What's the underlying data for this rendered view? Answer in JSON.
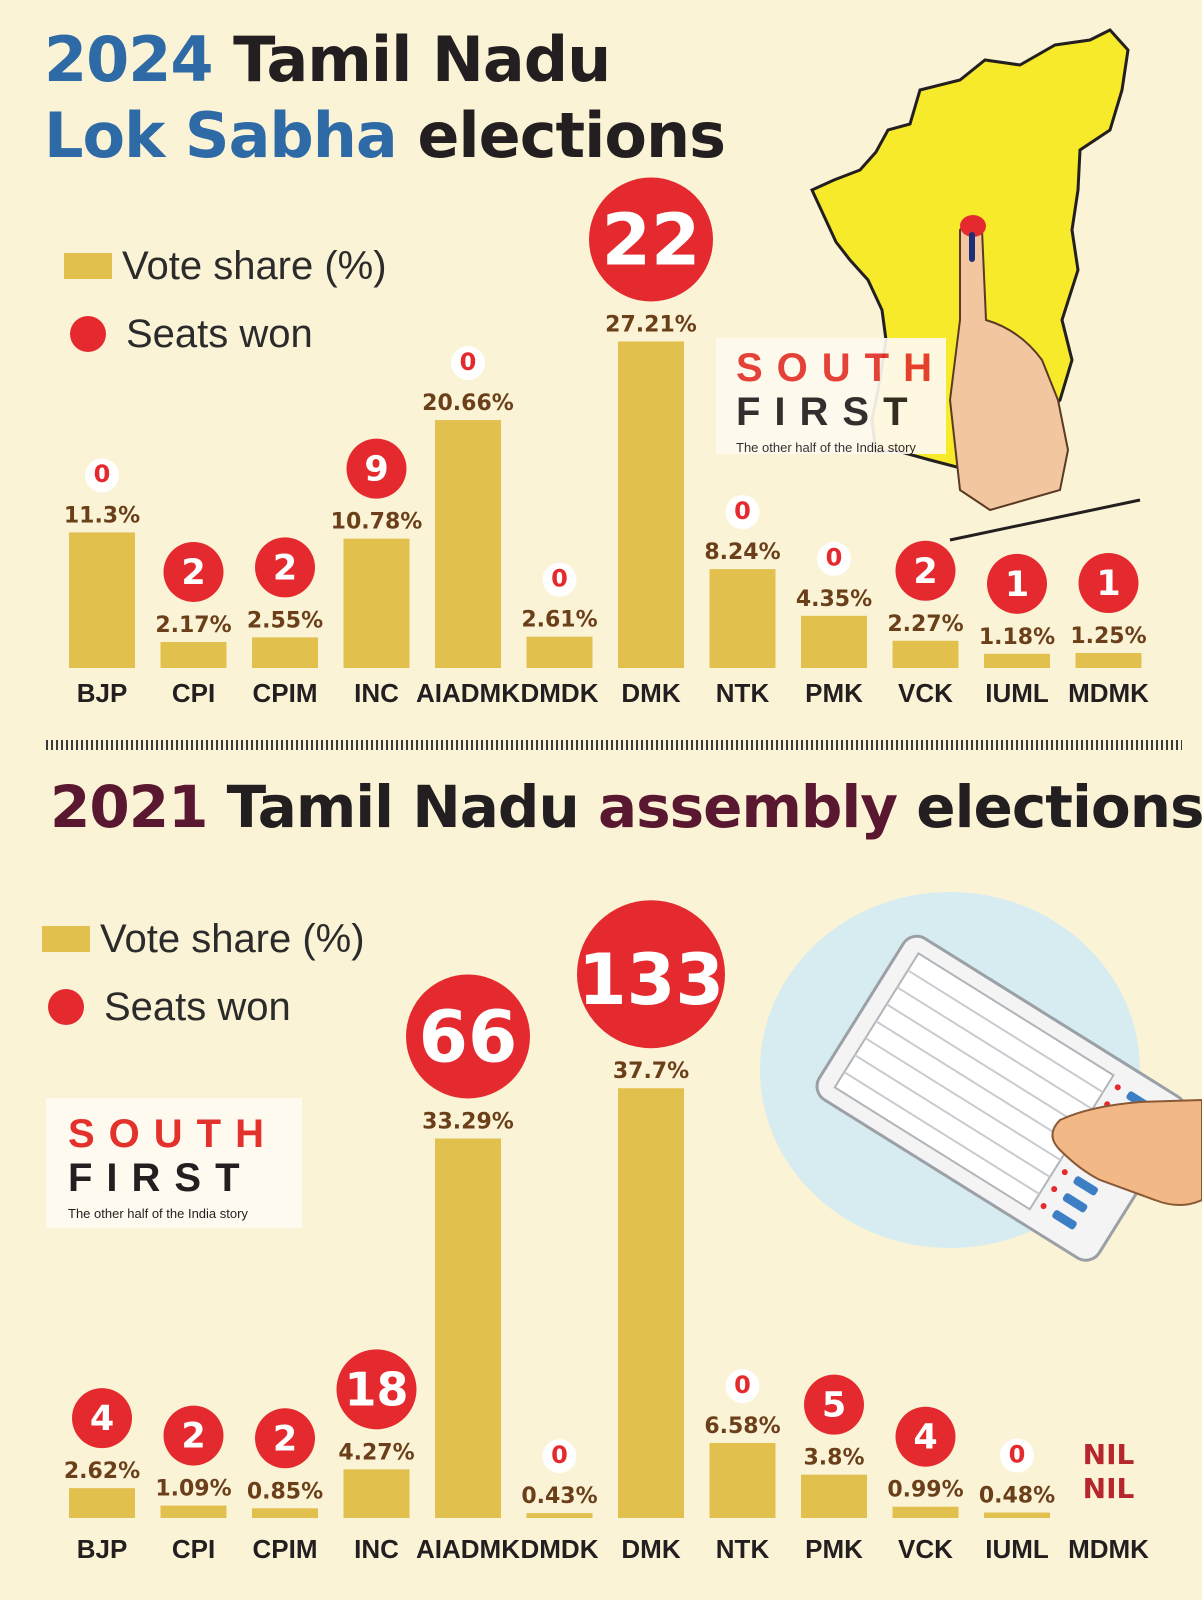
{
  "titles": {
    "lok_year": "2024",
    "lok_rest_line1": " Tamil Nadu",
    "lok_highlight": "Lok Sabha",
    "lok_rest_line2": " elections",
    "asm_year": "2021",
    "asm_mid": " Tamil Nadu ",
    "asm_highlight": "assembly",
    "asm_end": " elections"
  },
  "legend": {
    "vote_share": "Vote share (%)",
    "seats_won": "Seats won"
  },
  "logo": {
    "line1": "SOUTH",
    "line2": "FIRST",
    "tagline": "The other half of the India story"
  },
  "colors": {
    "bar": "#e2c04e",
    "seat_circle": "#e52a2f",
    "value_text": "#6b3f1a",
    "nil_text": "#b5272d",
    "label_text": "#231f20",
    "blue_title": "#2e6aa6",
    "maroon_title": "#5a1730",
    "map_fill": "#f6ea2a"
  },
  "icons": {
    "map": "tamil-nadu-map-with-inked-finger",
    "evm": "electronic-voting-machine-with-hand"
  },
  "chart_data": [
    {
      "type": "bar",
      "title": "2024 Tamil Nadu Lok Sabha elections",
      "categories": [
        "BJP",
        "CPI",
        "CPIM",
        "INC",
        "AIADMK",
        "DMDK",
        "DMK",
        "NTK",
        "PMK",
        "VCK",
        "IUML",
        "MDMK"
      ],
      "series": [
        {
          "name": "Vote share (%)",
          "values": [
            11.3,
            2.17,
            2.55,
            10.78,
            20.66,
            2.61,
            27.21,
            8.24,
            4.35,
            2.27,
            1.18,
            1.25
          ],
          "labels": [
            "11.3%",
            "2.17%",
            "2.55%",
            "10.78%",
            "20.66%",
            "2.61%",
            "27.21%",
            "8.24%",
            "4.35%",
            "2.27%",
            "1.18%",
            "1.25%"
          ]
        },
        {
          "name": "Seats won",
          "values": [
            0,
            2,
            2,
            9,
            0,
            0,
            22,
            0,
            0,
            2,
            1,
            1
          ]
        }
      ]
    },
    {
      "type": "bar",
      "title": "2021 Tamil Nadu assembly elections",
      "categories": [
        "BJP",
        "CPI",
        "CPIM",
        "INC",
        "AIADMK",
        "DMDK",
        "DMK",
        "NTK",
        "PMK",
        "VCK",
        "IUML",
        "MDMK"
      ],
      "series": [
        {
          "name": "Vote share (%)",
          "values": [
            2.62,
            1.09,
            0.85,
            4.27,
            33.29,
            0.43,
            37.7,
            6.58,
            3.8,
            0.99,
            0.48,
            null
          ],
          "labels": [
            "2.62%",
            "1.09%",
            "0.85%",
            "4.27%",
            "33.29%",
            "0.43%",
            "37.7%",
            "6.58%",
            "3.8%",
            "0.99%",
            "0.48%",
            "NIL"
          ]
        },
        {
          "name": "Seats won",
          "values": [
            4,
            2,
            2,
            18,
            66,
            0,
            133,
            0,
            5,
            4,
            0,
            null
          ],
          "labels": [
            "4",
            "2",
            "2",
            "18",
            "66",
            "0",
            "133",
            "0",
            "5",
            "4",
            "0",
            "NIL"
          ]
        }
      ]
    }
  ]
}
